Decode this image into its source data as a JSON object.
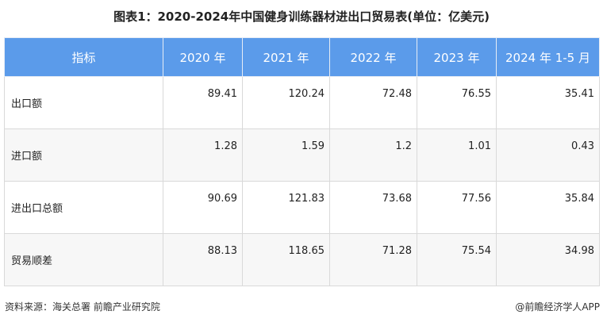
{
  "chart_data": {
    "type": "table",
    "title": "图表1：2020-2024年中国健身训练器材进出口贸易表(单位：亿美元)",
    "columns": [
      "指标",
      "2020 年",
      "2021 年",
      "2022 年",
      "2023 年",
      "2024 年 1-5 月"
    ],
    "rows": [
      {
        "label": "出口额",
        "values": [
          "89.41",
          "120.24",
          "72.48",
          "76.55",
          "35.41"
        ]
      },
      {
        "label": "进口额",
        "values": [
          "1.28",
          "1.59",
          "1.2",
          "1.01",
          "0.43"
        ]
      },
      {
        "label": "进出口总额",
        "values": [
          "90.69",
          "121.83",
          "73.68",
          "77.56",
          "35.84"
        ]
      },
      {
        "label": "贸易顺差",
        "values": [
          "88.13",
          "118.65",
          "71.28",
          "75.54",
          "34.98"
        ]
      }
    ],
    "header_color": "#5b9bea"
  },
  "footer": {
    "source": "资料来源：海关总署 前瞻产业研究院",
    "credit": "@前瞻经济学人APP"
  }
}
